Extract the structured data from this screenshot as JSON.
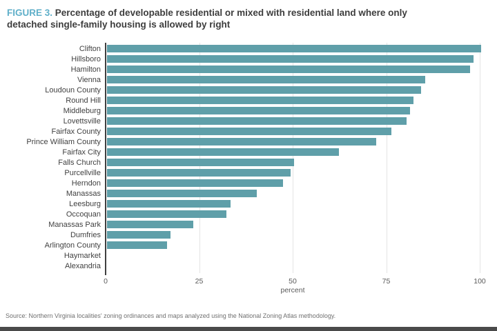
{
  "figure": {
    "label": "FIGURE 3.",
    "title": "Percentage of developable residential or mixed with residential land where only detached single-family housing is allowed by right"
  },
  "chart_data": {
    "type": "bar",
    "orientation": "horizontal",
    "title": "Percentage of developable residential or mixed with residential land where only detached single-family housing is allowed by right",
    "categories": [
      "Clifton",
      "Hillsboro",
      "Hamilton",
      "Vienna",
      "Loudoun County",
      "Round Hill",
      "Middleburg",
      "Lovettsville",
      "Fairfax County",
      "Prince William County",
      "Fairfax City",
      "Falls Church",
      "Purcellville",
      "Herndon",
      "Manassas",
      "Leesburg",
      "Occoquan",
      "Manassas Park",
      "Dumfries",
      "Arlington County",
      "Haymarket",
      "Alexandria"
    ],
    "values": [
      100,
      98,
      97,
      85,
      84,
      82,
      81,
      80,
      76,
      72,
      62,
      50,
      49,
      47,
      40,
      33,
      32,
      23,
      17,
      16,
      0,
      0
    ],
    "xlabel": "percent",
    "x_ticks": [
      0,
      25,
      50,
      75,
      100
    ],
    "xlim": [
      0,
      100
    ],
    "grid": true,
    "legend": "none",
    "bar_color": "#5f9fa9"
  },
  "source": "Source: Northern Virginia localities' zoning ordinances and maps analyzed using the National Zoning Atlas methodology.",
  "colors": {
    "bar": "#5f9fa9",
    "figure_label": "#5fafc9",
    "title_text": "#3d3d3d",
    "axis_line": "#3f3f3f",
    "gridline": "#e4e4e4",
    "tick_text": "#595959"
  }
}
